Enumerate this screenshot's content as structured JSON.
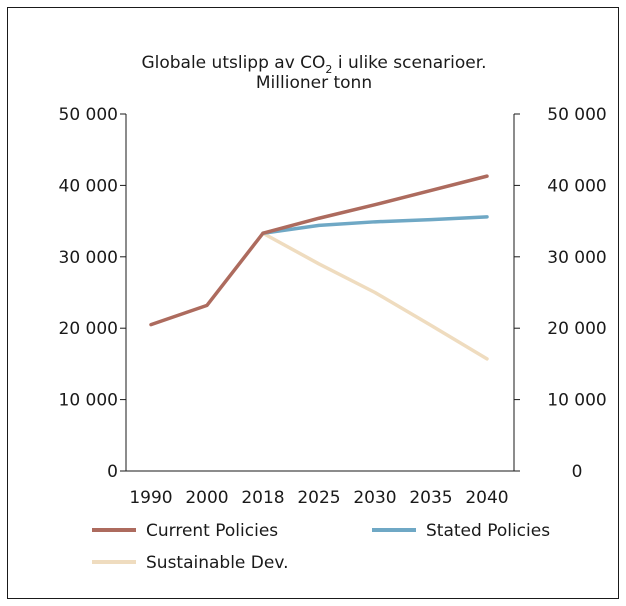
{
  "chart_data": {
    "type": "line",
    "title_line1": "Globale utslipp av CO",
    "title_sub": "2",
    "title_line1_rest": " i ulike scenarioer.",
    "title_line2": "Millioner tonn",
    "categories": [
      "1990",
      "2000",
      "2018",
      "2025",
      "2030",
      "2035",
      "2040"
    ],
    "ylim": [
      0,
      50000
    ],
    "yticks": [
      0,
      10000,
      20000,
      30000,
      40000,
      50000
    ],
    "ytick_labels": [
      "0",
      "10 000",
      "20 000",
      "30 000",
      "40 000",
      "50 000"
    ],
    "series": [
      {
        "name": "Current Policies",
        "color": "#ad6b5e",
        "values": [
          20500,
          23200,
          33300,
          35400,
          37300,
          39300,
          41300
        ]
      },
      {
        "name": "Stated Policies",
        "color": "#6fa8c5",
        "values": [
          null,
          null,
          33300,
          34400,
          34900,
          35200,
          35600
        ]
      },
      {
        "name": "Sustainable Dev.",
        "color": "#efdcbf",
        "values": [
          null,
          null,
          33300,
          29000,
          25000,
          20400,
          15700
        ]
      }
    ],
    "legend_position": "bottom"
  }
}
